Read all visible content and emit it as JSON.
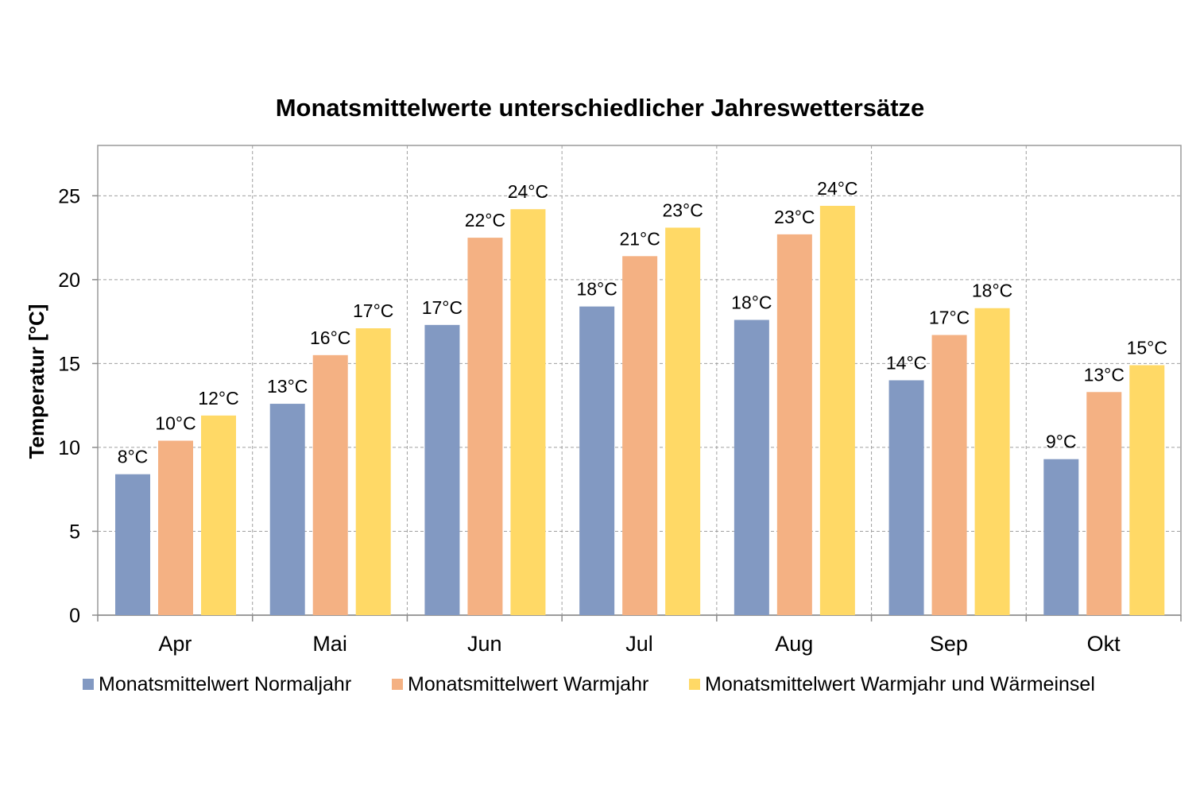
{
  "chart_data": {
    "type": "bar",
    "title": "Monatsmittelwerte unterschiedlicher Jahreswettersätze",
    "xlabel": "",
    "ylabel": "Temperatur [°C]",
    "ylim": [
      0,
      28
    ],
    "yticks": [
      0,
      5,
      10,
      15,
      20,
      25
    ],
    "grid": true,
    "legend_position": "bottom",
    "categories": [
      "Apr",
      "Mai",
      "Jun",
      "Jul",
      "Aug",
      "Sep",
      "Okt"
    ],
    "series": [
      {
        "name": "Monatsmittelwert Normaljahr",
        "color": "#8299c2",
        "values": [
          8.4,
          12.6,
          17.3,
          18.4,
          17.6,
          14.0,
          9.3
        ],
        "labels": [
          "8°C",
          "13°C",
          "17°C",
          "18°C",
          "18°C",
          "14°C",
          "9°C"
        ]
      },
      {
        "name": "Monatsmittelwert Warmjahr",
        "color": "#f4b183",
        "values": [
          10.4,
          15.5,
          22.5,
          21.4,
          22.7,
          16.7,
          13.3
        ],
        "labels": [
          "10°C",
          "16°C",
          "22°C",
          "21°C",
          "23°C",
          "17°C",
          "13°C"
        ]
      },
      {
        "name": "Monatsmittelwert Warmjahr und Wärmeinsel",
        "color": "#ffd966",
        "values": [
          11.9,
          17.1,
          24.2,
          23.1,
          24.4,
          18.3,
          14.9
        ],
        "labels": [
          "12°C",
          "17°C",
          "24°C",
          "23°C",
          "24°C",
          "18°C",
          "15°C"
        ]
      }
    ]
  }
}
